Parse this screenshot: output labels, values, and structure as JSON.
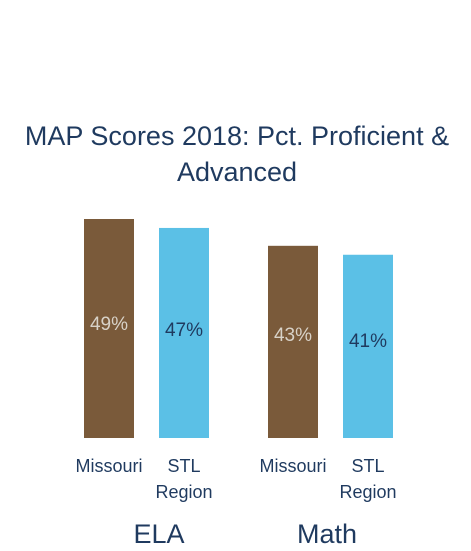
{
  "chart_data": {
    "type": "bar",
    "title_lines": [
      "MAP Scores 2018: Pct. Proficient &",
      "Advanced"
    ],
    "groups": [
      "ELA",
      "Math"
    ],
    "bars": [
      {
        "group": "ELA",
        "series_index": 0,
        "category_lines": [
          "Missouri"
        ],
        "value": 49,
        "label": "49%"
      },
      {
        "group": "ELA",
        "series_index": 1,
        "category_lines": [
          "STL",
          "Region"
        ],
        "value": 47,
        "label": "47%"
      },
      {
        "group": "Math",
        "series_index": 0,
        "category_lines": [
          "Missouri"
        ],
        "value": 43,
        "label": "43%"
      },
      {
        "group": "Math",
        "series_index": 1,
        "category_lines": [
          "STL",
          "Region"
        ],
        "value": 41,
        "label": "41%"
      }
    ],
    "series_colors": [
      "#7a5a3a",
      "#5bc0e6"
    ],
    "label_colors": [
      "#d8d2c8",
      "#1f3a5f"
    ],
    "ylim": [
      0,
      55
    ],
    "grid": false,
    "legend": "none"
  }
}
